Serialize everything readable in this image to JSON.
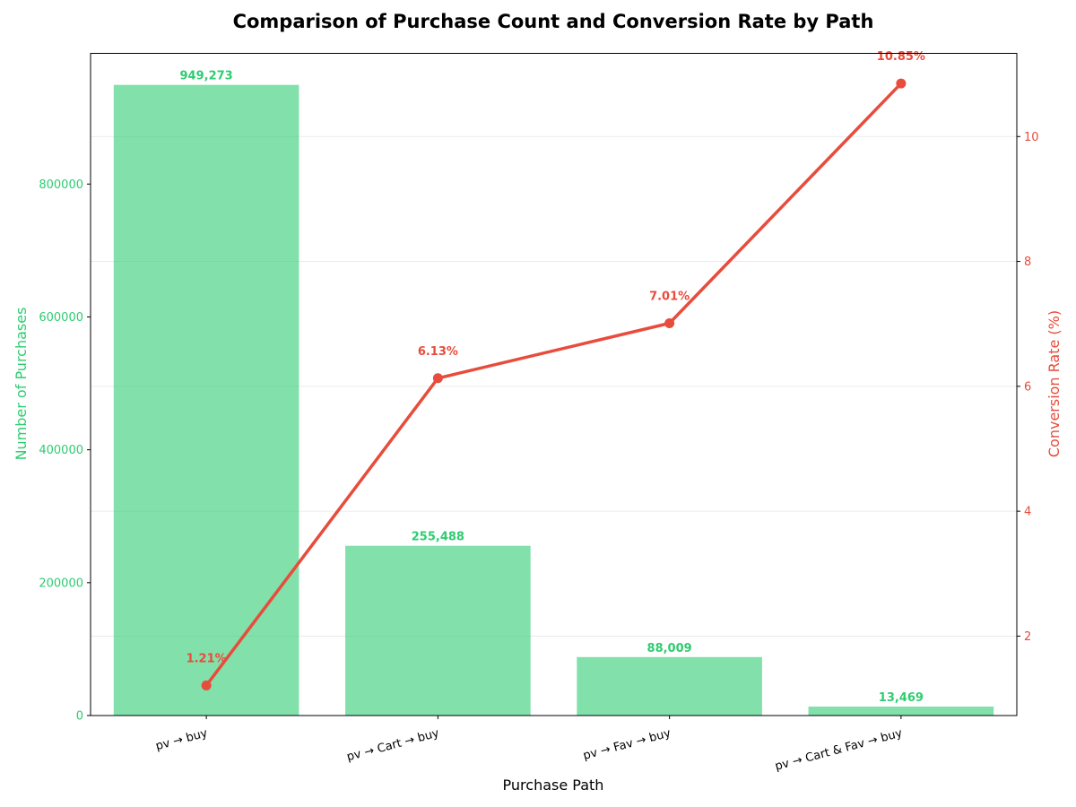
{
  "chart_data": {
    "type": "bar+line",
    "title": "Comparison of Purchase Count and Conversion Rate by Path",
    "xlabel": "Purchase Path",
    "ylabel_left": "Number of Purchases",
    "ylabel_right": "Conversion Rate (%)",
    "categories": [
      "pv → buy",
      "pv → Cart → buy",
      "pv → Fav → buy",
      "pv → Cart & Fav → buy"
    ],
    "series": [
      {
        "name": "Number of Purchases",
        "type": "bar",
        "axis": "left",
        "values": [
          949273,
          255488,
          88009,
          13469
        ],
        "labels": [
          "949,273",
          "255,488",
          "88,009",
          "13,469"
        ]
      },
      {
        "name": "Conversion Rate (%)",
        "type": "line",
        "axis": "right",
        "values": [
          1.21,
          6.13,
          7.01,
          10.85
        ],
        "labels": [
          "1.21%",
          "6.13%",
          "7.01%",
          "10.85%"
        ]
      }
    ],
    "ylim_left": [
      0,
      996737
    ],
    "ylim_right": [
      0.728,
      11.332
    ],
    "yticks_left": [
      0,
      200000,
      400000,
      600000,
      800000
    ],
    "yticks_left_labels": [
      "0",
      "200000",
      "400000",
      "600000",
      "800000"
    ],
    "yticks_right": [
      2,
      4,
      6,
      8,
      10
    ],
    "yticks_right_labels": [
      "2",
      "4",
      "6",
      "8",
      "10"
    ],
    "grid": "horizontal",
    "colors": {
      "bar": "#2ecc71",
      "line": "#e74c3c",
      "left_axis": "#2ecc71",
      "right_axis": "#e74c3c"
    }
  }
}
